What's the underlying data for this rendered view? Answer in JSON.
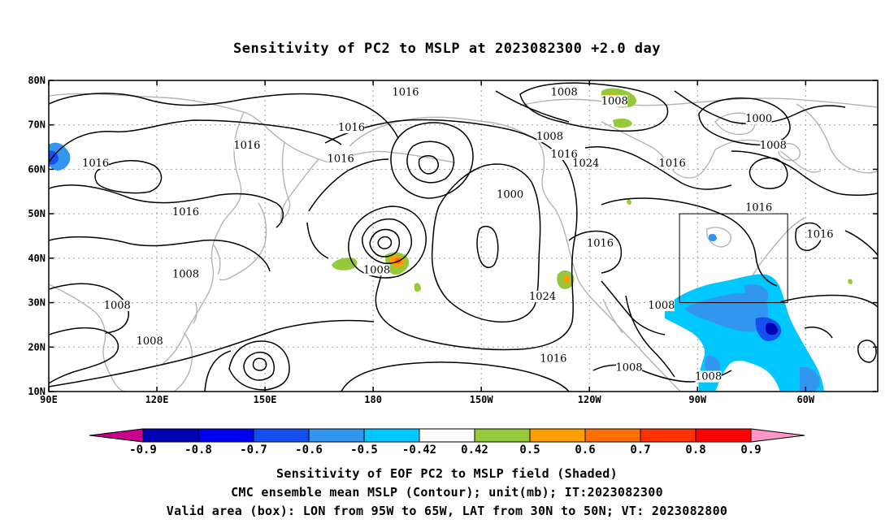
{
  "title": "Sensitivity of PC2 to MSLP at 2023082300 +2.0 day",
  "lon_labels": [
    "90E",
    "120E",
    "150E",
    "180",
    "150W",
    "120W",
    "90W",
    "60W"
  ],
  "lat_labels": [
    "80N",
    "70N",
    "60N",
    "50N",
    "40N",
    "30N",
    "20N",
    "10N"
  ],
  "contour_labels": [
    {
      "text": "1016",
      "lon": 189,
      "lat": 77
    },
    {
      "text": "1016",
      "lon": 174,
      "lat": 69
    },
    {
      "text": "1016",
      "lon": 145,
      "lat": 65
    },
    {
      "text": "1016",
      "lon": 103,
      "lat": 61
    },
    {
      "text": "1016",
      "lon": 128,
      "lat": 50
    },
    {
      "text": "1016",
      "lon": 171,
      "lat": 62
    },
    {
      "text": "1008",
      "lon": 229,
      "lat": 67
    },
    {
      "text": "1000",
      "lon": 218,
      "lat": 54
    },
    {
      "text": "1016",
      "lon": 233,
      "lat": 63
    },
    {
      "text": "1024",
      "lon": 239,
      "lat": 61
    },
    {
      "text": "1016",
      "lon": 243,
      "lat": 43
    },
    {
      "text": "1008",
      "lon": 181,
      "lat": 37
    },
    {
      "text": "1024",
      "lon": 227,
      "lat": 31
    },
    {
      "text": "1016",
      "lon": 230,
      "lat": 17
    },
    {
      "text": "1008",
      "lon": 233,
      "lat": 77
    },
    {
      "text": "1008",
      "lon": 247,
      "lat": 75
    },
    {
      "text": "1000",
      "lon": 287,
      "lat": 71
    },
    {
      "text": "1008",
      "lon": 291,
      "lat": 65
    },
    {
      "text": "1016",
      "lon": 263,
      "lat": 61
    },
    {
      "text": "1016",
      "lon": 287,
      "lat": 51
    },
    {
      "text": "1016",
      "lon": 304,
      "lat": 45
    },
    {
      "text": "1008",
      "lon": 128,
      "lat": 36
    },
    {
      "text": "1008",
      "lon": 109,
      "lat": 29
    },
    {
      "text": "1008",
      "lon": 118,
      "lat": 21
    },
    {
      "text": "1008",
      "lon": 260,
      "lat": 29
    },
    {
      "text": "1008",
      "lon": 251,
      "lat": 15
    },
    {
      "text": "1008",
      "lon": 273,
      "lat": 13
    }
  ],
  "valid_box": {
    "lon_min": 265,
    "lon_max": 295,
    "lat_min": 30,
    "lat_max": 50
  },
  "colorbar": {
    "colors": [
      "#c8008c",
      "#0000b4",
      "#0000f0",
      "#1450f0",
      "#3296f0",
      "#00c8ff",
      "#ffffff",
      "#96c83c",
      "#ffa000",
      "#ff6e00",
      "#ff3200",
      "#ff0000",
      "#ff96c8"
    ],
    "labels": [
      "-0.9",
      "-0.8",
      "-0.7",
      "-0.6",
      "-0.5",
      "-0.42",
      "0.42",
      "0.5",
      "0.6",
      "0.7",
      "0.8",
      "0.9"
    ]
  },
  "captions": [
    "Sensitivity of EOF PC2 to MSLP field (Shaded)",
    "CMC ensemble mean MSLP (Contour); unit(mb); IT:2023082300",
    "Valid area (box): LON from 95W to 65W, LAT from 30N to 50N; VT: 2023082800"
  ]
}
